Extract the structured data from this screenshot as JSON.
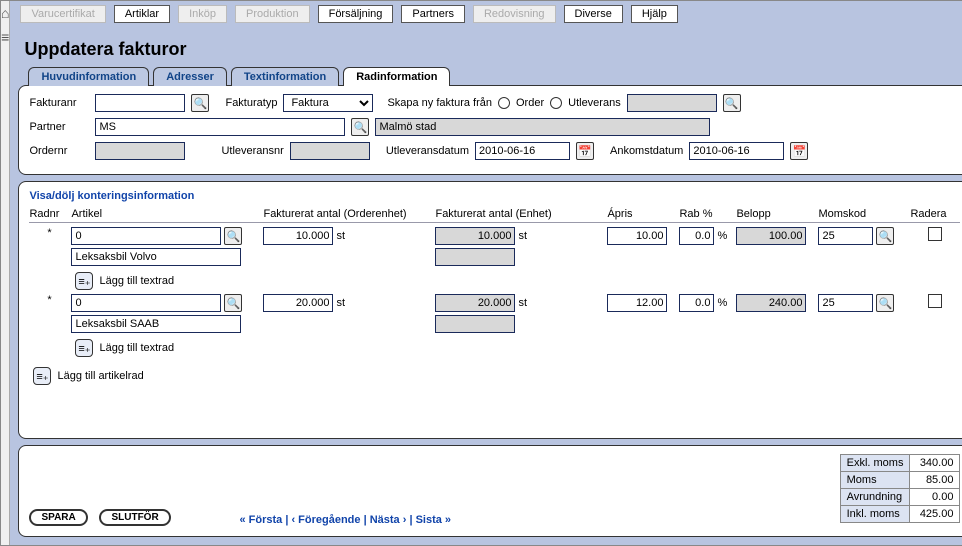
{
  "nav": {
    "items": [
      {
        "label": "Varucertifikat",
        "disabled": true
      },
      {
        "label": "Artiklar",
        "disabled": false
      },
      {
        "label": "Inköp",
        "disabled": true
      },
      {
        "label": "Produktion",
        "disabled": true
      },
      {
        "label": "Försäljning",
        "disabled": false
      },
      {
        "label": "Partners",
        "disabled": false
      },
      {
        "label": "Redovisning",
        "disabled": true
      },
      {
        "label": "Diverse",
        "disabled": false
      },
      {
        "label": "Hjälp",
        "disabled": false
      }
    ]
  },
  "page": {
    "title": "Uppdatera fakturor"
  },
  "tabs": [
    {
      "label": "Huvudinformation",
      "active": false
    },
    {
      "label": "Adresser",
      "active": false
    },
    {
      "label": "Textinformation",
      "active": false
    },
    {
      "label": "Radinformation",
      "active": true
    }
  ],
  "header": {
    "fakturanr_label": "Fakturanr",
    "fakturanr_value": "",
    "fakturatyp_label": "Fakturatyp",
    "fakturatyp_value": "Faktura",
    "skapa_label": "Skapa ny faktura från",
    "order_label": "Order",
    "utleverans_label": "Utleverans",
    "partner_label": "Partner",
    "partner_code": "MS",
    "partner_name": "Malmö stad",
    "ordernr_label": "Ordernr",
    "ordernr_value": "",
    "utleveransnr_label": "Utleveransnr",
    "utleveransnr_value": "",
    "utleveransdatum_label": "Utleveransdatum",
    "utleveransdatum_value": "2010-06-16",
    "ankomstdatum_label": "Ankomstdatum",
    "ankomstdatum_value": "2010-06-16"
  },
  "grid": {
    "toggle_label": "Visa/dölj konteringsinformation",
    "columns": {
      "radnr": "Radnr",
      "artikel": "Artikel",
      "fakt_order": "Fakturerat antal (Orderenhet)",
      "fakt_enhet": "Fakturerat antal (Enhet)",
      "apris": "Ápris",
      "rab": "Rab %",
      "belopp": "Belopp",
      "momskod": "Momskod",
      "radera": "Radera"
    },
    "rows": [
      {
        "radnr": "*",
        "artikel_code": "0",
        "artikel_name": "Leksaksbil Volvo",
        "qty_order": "10.000",
        "unit_order": "st",
        "qty_unit": "10.000",
        "unit_unit": "st",
        "apris": "10.00",
        "rab": "0.0",
        "rab_unit": "%",
        "belopp": "100.00",
        "momskod": "25",
        "add_text": "Lägg till textrad"
      },
      {
        "radnr": "*",
        "artikel_code": "0",
        "artikel_name": "Leksaksbil SAAB",
        "qty_order": "20.000",
        "unit_order": "st",
        "qty_unit": "20.000",
        "unit_unit": "st",
        "apris": "12.00",
        "rab": "0.0",
        "rab_unit": "%",
        "belopp": "240.00",
        "momskod": "25",
        "add_text": "Lägg till textrad"
      }
    ],
    "add_artikel": "Lägg till artikelrad"
  },
  "footer": {
    "spara": "SPARA",
    "slutfor": "SLUTFÖR",
    "navtext": "« Första | ‹ Föregående | Nästa › | Sista »",
    "totals": [
      {
        "label": "Exkl. moms",
        "value": "340.00"
      },
      {
        "label": "Moms",
        "value": "85.00"
      },
      {
        "label": "Avrundning",
        "value": "0.00"
      },
      {
        "label": "Inkl. moms",
        "value": "425.00"
      }
    ]
  }
}
